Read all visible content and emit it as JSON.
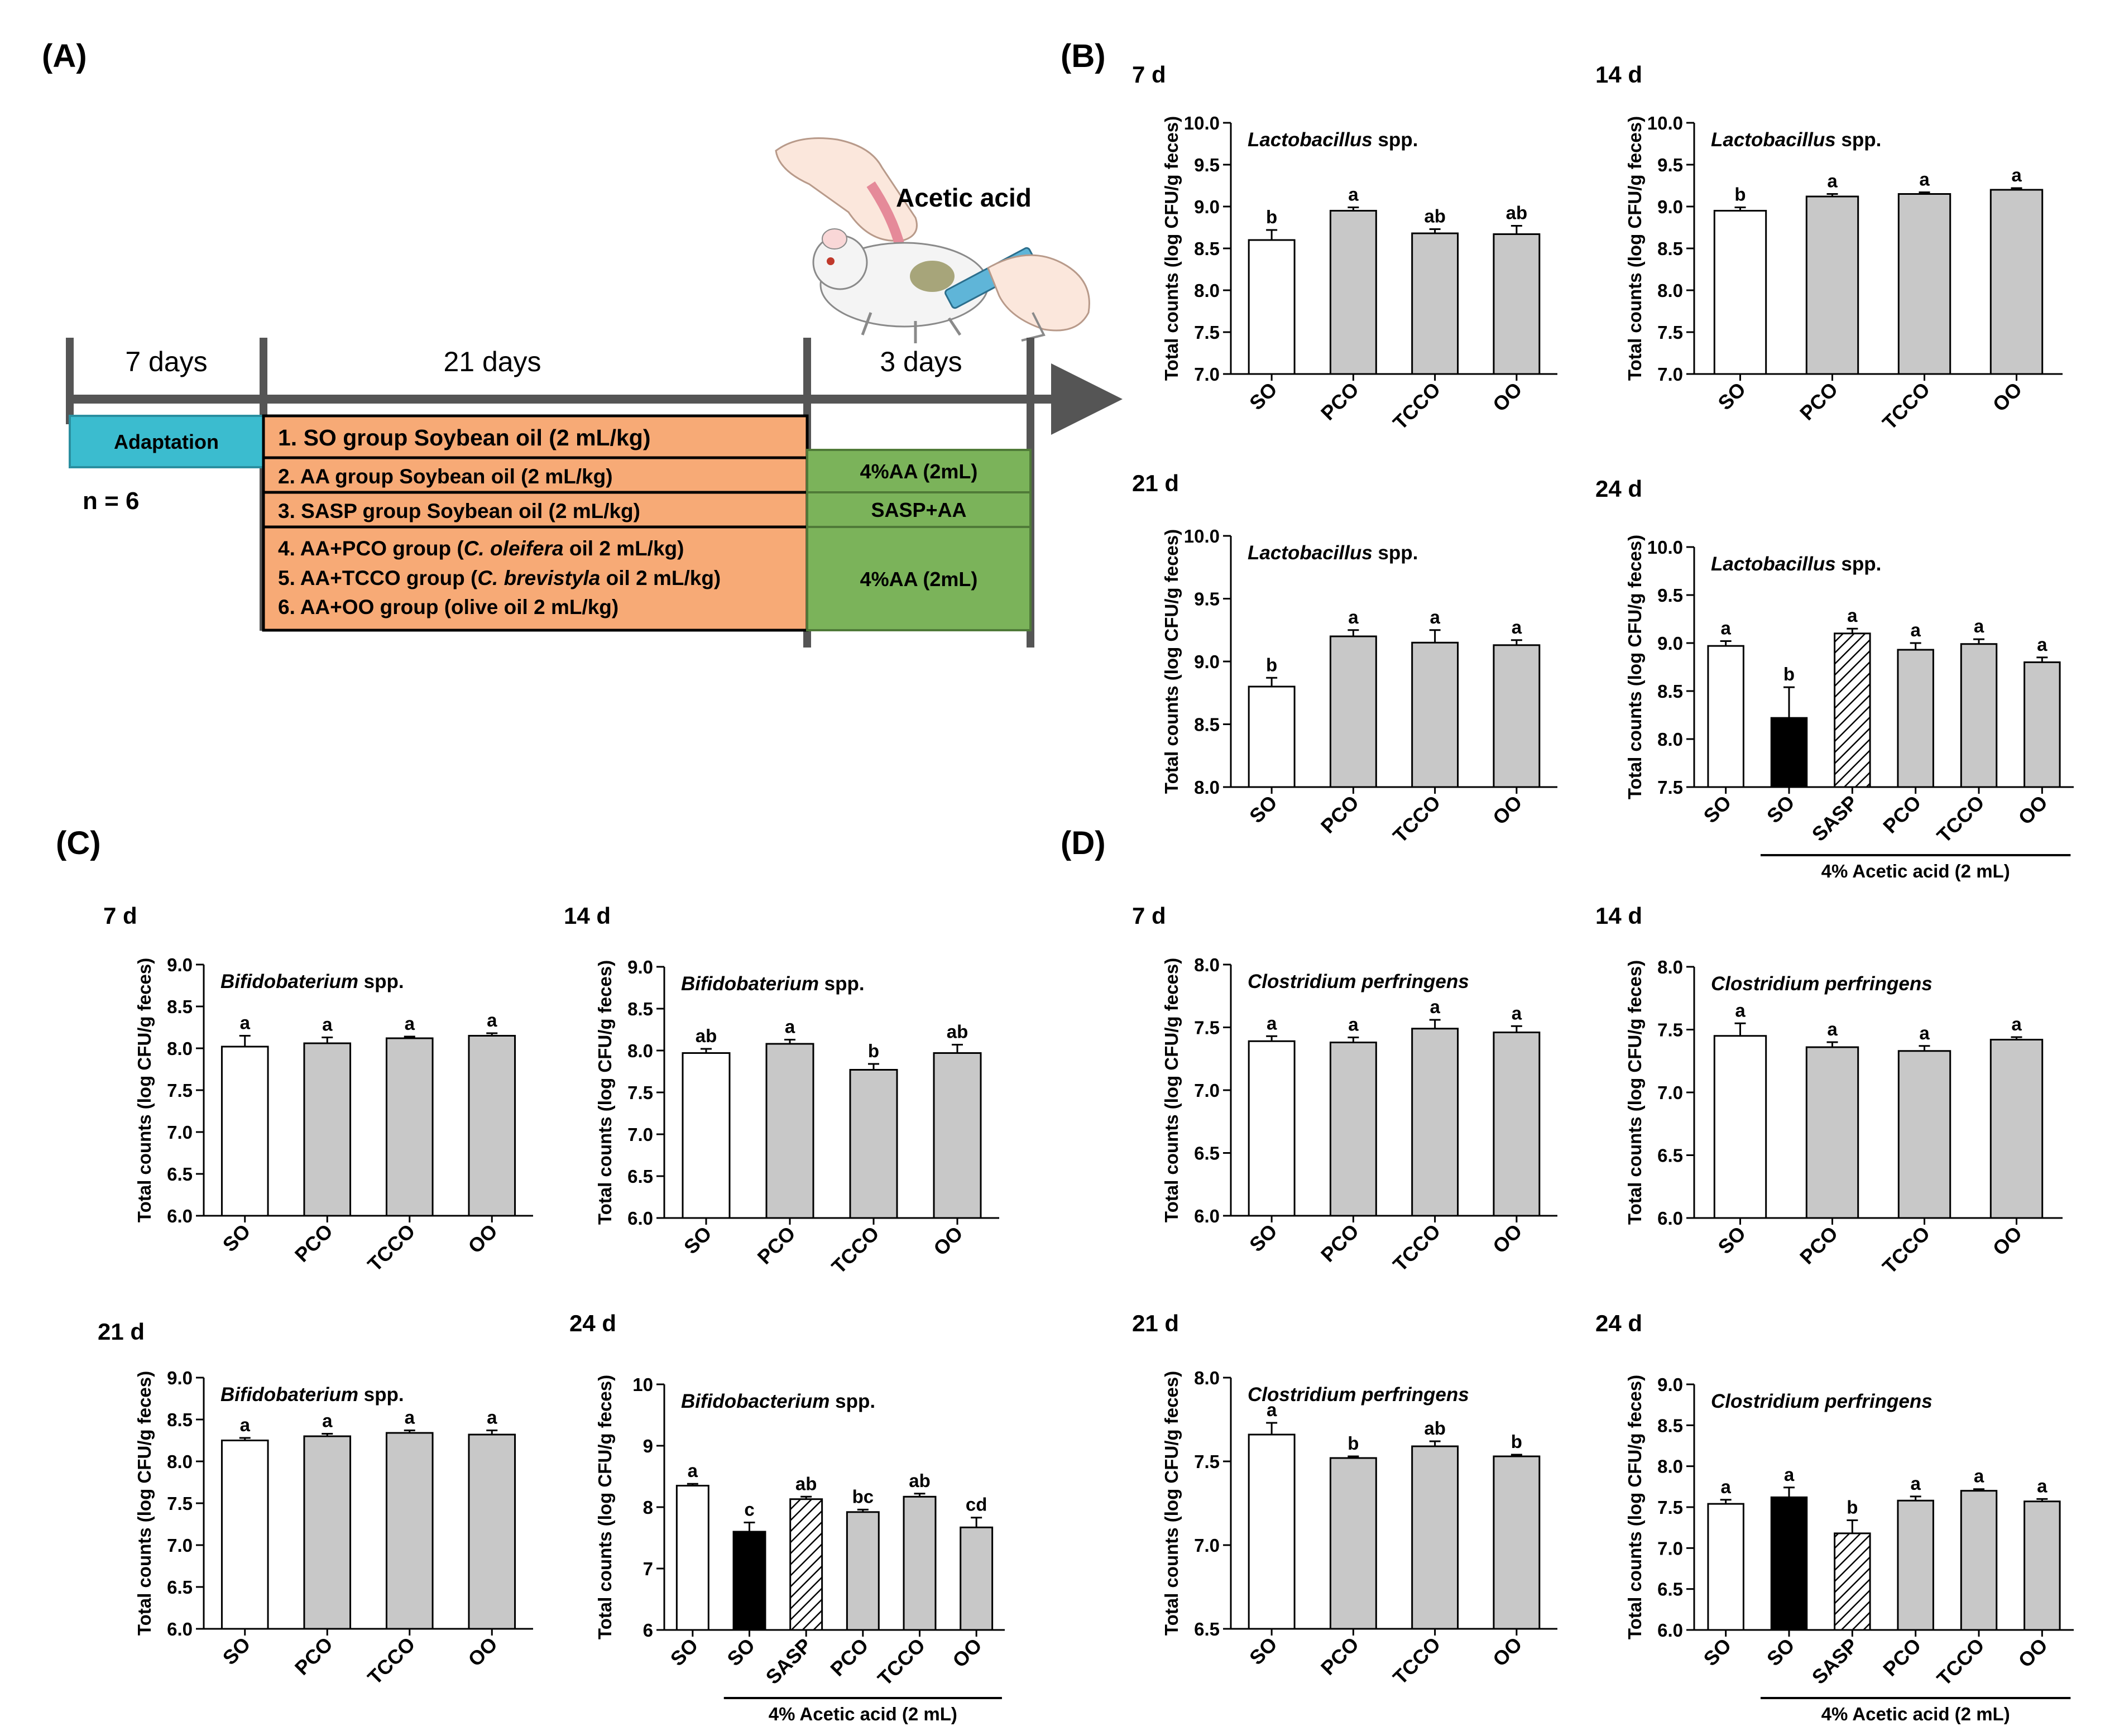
{
  "panel_labels": [
    "(A)",
    "(B)",
    "(C)",
    "(D)"
  ],
  "timeline": {
    "periods": [
      {
        "label": "7 days"
      },
      {
        "label": "21 days"
      },
      {
        "label": "3 days"
      }
    ],
    "illustration_label": "Acetic acid",
    "adaptation": "Adaptation",
    "n_label": "n = 6",
    "groups": [
      {
        "text": "1. SO group Soybean oil (2 mL/kg)"
      },
      {
        "text": "2. AA group Soybean oil (2 mL/kg)"
      },
      {
        "text": "3. SASP group Soybean oil (2 mL/kg)"
      },
      {
        "text": "4. AA+PCO group (C. oleifera oil 2 mL/kg)"
      },
      {
        "text": "5. AA+TCCO group (C. brevistyla oil 2 mL/kg)"
      },
      {
        "text": "6. AA+OO group (olive oil 2 mL/kg)"
      }
    ],
    "treatments": [
      "4%AA (2mL)",
      "SASP+AA",
      "4%AA (2mL)"
    ]
  },
  "colors": {
    "adaptation": "#3bbccf",
    "groups": "#f7aa76",
    "treatment": "#7bb35a",
    "bar_white": "#ffffff",
    "bar_black": "#000000",
    "bar_gray": "#c8c8c8",
    "axis": "#000000",
    "timeline": "#555555"
  },
  "chart_data": [
    {
      "id": "B1",
      "type": "bar",
      "day": "7 d",
      "title": "Lactobacillus spp.",
      "ylabel": "Total counts (log CFU/g feces)",
      "ylim": [
        7.0,
        10.0
      ],
      "yticks": [
        "7.0",
        "7.5",
        "8.0",
        "8.5",
        "9.0",
        "9.5",
        "10.0"
      ],
      "categories": [
        "SO",
        "PCO",
        "TCCO",
        "OO"
      ],
      "values": [
        8.6,
        8.95,
        8.68,
        8.67
      ],
      "errors": [
        0.12,
        0.04,
        0.05,
        0.1
      ],
      "letters": [
        "b",
        "a",
        "ab",
        "ab"
      ],
      "styles": [
        "white",
        "gray",
        "gray",
        "gray"
      ]
    },
    {
      "id": "B2",
      "type": "bar",
      "day": "14 d",
      "title": "Lactobacillus spp.",
      "ylabel": "Total counts (log CFU/g feces)",
      "ylim": [
        7.0,
        10.0
      ],
      "yticks": [
        "7.0",
        "7.5",
        "8.0",
        "8.5",
        "9.0",
        "9.5",
        "10.0"
      ],
      "categories": [
        "SO",
        "PCO",
        "TCCO",
        "OO"
      ],
      "values": [
        8.95,
        9.12,
        9.15,
        9.2
      ],
      "errors": [
        0.04,
        0.03,
        0.02,
        0.02
      ],
      "letters": [
        "b",
        "a",
        "a",
        "a"
      ],
      "styles": [
        "white",
        "gray",
        "gray",
        "gray"
      ]
    },
    {
      "id": "B3",
      "type": "bar",
      "day": "21 d",
      "title": "Lactobacillus spp.",
      "ylabel": "Total counts (log CFU/g feces)",
      "ylim": [
        8.0,
        10.0
      ],
      "yticks": [
        "8.0",
        "8.5",
        "9.0",
        "9.5",
        "10.0"
      ],
      "categories": [
        "SO",
        "PCO",
        "TCCO",
        "OO"
      ],
      "values": [
        8.8,
        9.2,
        9.15,
        9.13
      ],
      "errors": [
        0.07,
        0.05,
        0.1,
        0.04
      ],
      "letters": [
        "b",
        "a",
        "a",
        "a"
      ],
      "styles": [
        "white",
        "gray",
        "gray",
        "gray"
      ]
    },
    {
      "id": "B4",
      "type": "bar",
      "day": "24 d",
      "title": "Lactobacillus spp.",
      "ylabel": "Total counts (log CFU/g feces)",
      "ylim": [
        7.5,
        10.0
      ],
      "yticks": [
        "7.5",
        "8.0",
        "8.5",
        "9.0",
        "9.5",
        "10.0"
      ],
      "categories": [
        "SO",
        "SO",
        "SASP",
        "PCO",
        "TCCO",
        "OO"
      ],
      "values": [
        8.97,
        8.22,
        9.1,
        8.93,
        8.99,
        8.8
      ],
      "errors": [
        0.05,
        0.32,
        0.05,
        0.07,
        0.05,
        0.05
      ],
      "letters": [
        "a",
        "b",
        "a",
        "a",
        "a",
        "a"
      ],
      "styles": [
        "white",
        "black",
        "hatched",
        "gray",
        "gray",
        "gray"
      ],
      "group_label": "4% Acetic acid (2 mL)",
      "group_span": [
        1,
        5
      ]
    },
    {
      "id": "C1",
      "type": "bar",
      "day": "7 d",
      "title": "Bifidobaterium spp.",
      "ylabel": "Total counts (log CFU/g feces)",
      "ylim": [
        6.0,
        9.0
      ],
      "yticks": [
        "6.0",
        "6.5",
        "7.0",
        "7.5",
        "8.0",
        "8.5",
        "9.0"
      ],
      "categories": [
        "SO",
        "PCO",
        "TCCO",
        "OO"
      ],
      "values": [
        8.02,
        8.06,
        8.12,
        8.15
      ],
      "errors": [
        0.13,
        0.07,
        0.02,
        0.03
      ],
      "letters": [
        "a",
        "a",
        "a",
        "a"
      ],
      "styles": [
        "white",
        "gray",
        "gray",
        "gray"
      ]
    },
    {
      "id": "C2",
      "type": "bar",
      "day": "14 d",
      "title": "Bifidobaterium spp.",
      "ylabel": "Total counts (log CFU/g feces)",
      "ylim": [
        6.0,
        9.0
      ],
      "yticks": [
        "6.0",
        "6.5",
        "7.0",
        "7.5",
        "8.0",
        "8.5",
        "9.0"
      ],
      "categories": [
        "SO",
        "PCO",
        "TCCO",
        "OO"
      ],
      "values": [
        7.97,
        8.08,
        7.77,
        7.97
      ],
      "errors": [
        0.05,
        0.05,
        0.07,
        0.1
      ],
      "letters": [
        "ab",
        "a",
        "b",
        "ab"
      ],
      "styles": [
        "white",
        "gray",
        "gray",
        "gray"
      ]
    },
    {
      "id": "C3",
      "type": "bar",
      "day": "21 d",
      "title": "Bifidobaterium spp.",
      "ylabel": "Total counts (log CFU/g feces)",
      "ylim": [
        6.0,
        9.0
      ],
      "yticks": [
        "6.0",
        "6.5",
        "7.0",
        "7.5",
        "8.0",
        "8.5",
        "9.0"
      ],
      "categories": [
        "SO",
        "PCO",
        "TCCO",
        "OO"
      ],
      "values": [
        8.25,
        8.3,
        8.34,
        8.32
      ],
      "errors": [
        0.03,
        0.03,
        0.03,
        0.05
      ],
      "letters": [
        "a",
        "a",
        "a",
        "a"
      ],
      "styles": [
        "white",
        "gray",
        "gray",
        "gray"
      ]
    },
    {
      "id": "C4",
      "type": "bar",
      "day": "24 d",
      "title": "Bifidobacterium spp.",
      "ylabel": "Total counts (log CFU/g feces)",
      "ylim": [
        6,
        10
      ],
      "yticks": [
        "6",
        "7",
        "8",
        "9",
        "10"
      ],
      "categories": [
        "SO",
        "SO",
        "SASP",
        "PCO",
        "TCCO",
        "OO"
      ],
      "values": [
        8.35,
        7.6,
        8.13,
        7.92,
        8.17,
        7.67
      ],
      "errors": [
        0.03,
        0.15,
        0.04,
        0.04,
        0.05,
        0.16
      ],
      "letters": [
        "a",
        "c",
        "ab",
        "bc",
        "ab",
        "cd"
      ],
      "styles": [
        "white",
        "black",
        "hatched",
        "gray",
        "gray",
        "gray"
      ],
      "group_label": "4% Acetic acid (2 mL)",
      "group_span": [
        1,
        5
      ]
    },
    {
      "id": "D1",
      "type": "bar",
      "day": "7 d",
      "title": "Clostridium perfringens",
      "ylabel": "Total counts (log CFU/g feces)",
      "ylim": [
        6.0,
        8.0
      ],
      "yticks": [
        "6.0",
        "6.5",
        "7.0",
        "7.5",
        "8.0"
      ],
      "categories": [
        "SO",
        "PCO",
        "TCCO",
        "OO"
      ],
      "values": [
        7.39,
        7.38,
        7.49,
        7.46
      ],
      "errors": [
        0.04,
        0.04,
        0.07,
        0.05
      ],
      "letters": [
        "a",
        "a",
        "a",
        "a"
      ],
      "styles": [
        "white",
        "gray",
        "gray",
        "gray"
      ]
    },
    {
      "id": "D2",
      "type": "bar",
      "day": "14 d",
      "title": "Clostridium perfringens",
      "ylabel": "Total counts (log CFU/g feces)",
      "ylim": [
        6.0,
        8.0
      ],
      "yticks": [
        "6.0",
        "6.5",
        "7.0",
        "7.5",
        "8.0"
      ],
      "categories": [
        "SO",
        "PCO",
        "TCCO",
        "OO"
      ],
      "values": [
        7.45,
        7.36,
        7.33,
        7.42
      ],
      "errors": [
        0.1,
        0.04,
        0.04,
        0.02
      ],
      "letters": [
        "a",
        "a",
        "a",
        "a"
      ],
      "styles": [
        "white",
        "gray",
        "gray",
        "gray"
      ]
    },
    {
      "id": "D3",
      "type": "bar",
      "day": "21 d",
      "title": "Clostridium perfringens",
      "ylabel": "Total counts (log CFU/g feces)",
      "ylim": [
        6.5,
        8.0
      ],
      "yticks": [
        "6.5",
        "7.0",
        "7.5",
        "8.0"
      ],
      "categories": [
        "SO",
        "PCO",
        "TCCO",
        "OO"
      ],
      "values": [
        7.66,
        7.52,
        7.59,
        7.53
      ],
      "errors": [
        0.07,
        0.01,
        0.03,
        0.01
      ],
      "letters": [
        "a",
        "b",
        "ab",
        "b"
      ],
      "styles": [
        "white",
        "gray",
        "gray",
        "gray"
      ]
    },
    {
      "id": "D4",
      "type": "bar",
      "day": "24 d",
      "title": "Clostridium perfringens",
      "ylabel": "Total counts (log CFU/g feces)",
      "ylim": [
        6.0,
        9.0
      ],
      "yticks": [
        "6.0",
        "6.5",
        "7.0",
        "7.5",
        "8.0",
        "8.5",
        "9.0"
      ],
      "categories": [
        "SO",
        "SO",
        "SASP",
        "PCO",
        "TCCO",
        "OO"
      ],
      "values": [
        7.54,
        7.62,
        7.18,
        7.58,
        7.7,
        7.57
      ],
      "errors": [
        0.05,
        0.12,
        0.16,
        0.05,
        0.02,
        0.03
      ],
      "letters": [
        "a",
        "a",
        "b",
        "a",
        "a",
        "a"
      ],
      "styles": [
        "white",
        "black",
        "hatched",
        "gray",
        "gray",
        "gray"
      ],
      "group_label": "4% Acetic acid (2 mL)",
      "group_span": [
        1,
        5
      ]
    }
  ]
}
